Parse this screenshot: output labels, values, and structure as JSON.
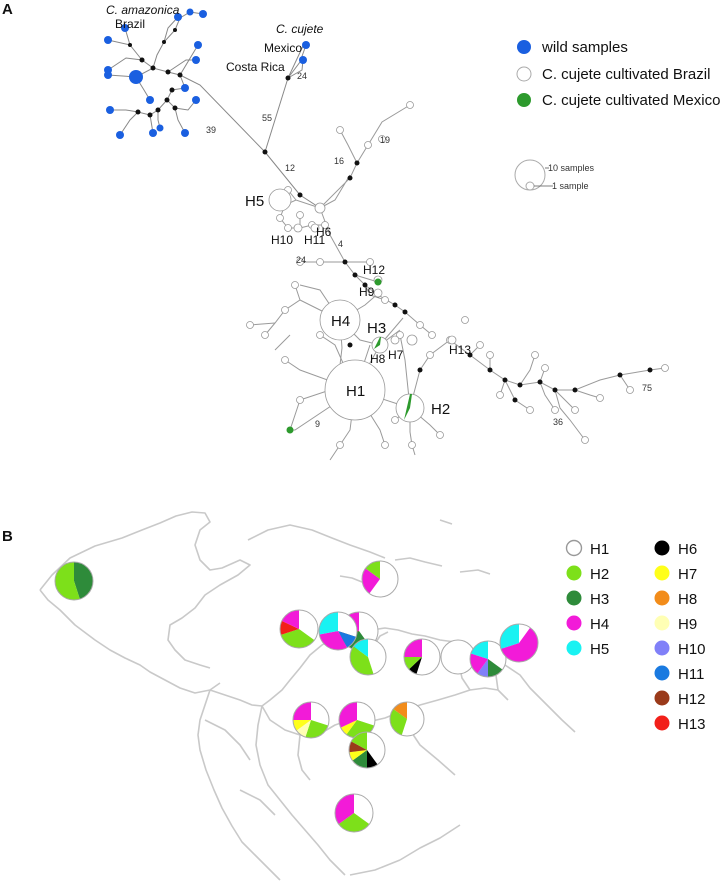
{
  "panels": {
    "a": "A",
    "b": "B"
  },
  "network": {
    "labels": {
      "amazonica_species": "C. amazonica",
      "amazonica_place": "Brazil",
      "cujete_species": "C. cujete",
      "mexico": "Mexico",
      "costa_rica": "Costa Rica"
    },
    "mutation_counts": [
      "39",
      "55",
      "24",
      "12",
      "16",
      "19",
      "4",
      "24",
      "9",
      "36",
      "75"
    ],
    "haplotypes": [
      "H1",
      "H2",
      "H3",
      "H4",
      "H5",
      "H6",
      "H7",
      "H8",
      "H9",
      "H10",
      "H11",
      "H12",
      "H13"
    ],
    "legend": {
      "wild": "wild samples",
      "brazil": "C. cujete cultivated Brazil",
      "mexico": "C. cujete cultivated Mexico",
      "colors": {
        "wild": "#1a5fe0",
        "brazil": "#ffffff",
        "mexico": "#2d9a2d"
      }
    },
    "scale": {
      "big": "10 samples",
      "small": "1 sample"
    }
  },
  "map_legend": [
    {
      "name": "H1",
      "color": "#ffffff"
    },
    {
      "name": "H2",
      "color": "#7de01a"
    },
    {
      "name": "H3",
      "color": "#2e8b3a"
    },
    {
      "name": "H4",
      "color": "#f21bd8"
    },
    {
      "name": "H5",
      "color": "#19f2f2"
    },
    {
      "name": "H6",
      "color": "#000000"
    },
    {
      "name": "H7",
      "color": "#ffff1a"
    },
    {
      "name": "H8",
      "color": "#f28c1a"
    },
    {
      "name": "H9",
      "color": "#ffffb4"
    },
    {
      "name": "H10",
      "color": "#8080f8"
    },
    {
      "name": "H11",
      "color": "#1a7ae0"
    },
    {
      "name": "H12",
      "color": "#9a3a1a"
    },
    {
      "name": "H13",
      "color": "#f2201a"
    }
  ],
  "map_pies": [
    {
      "slices": [
        [
          "H3",
          0.45
        ],
        [
          "H2",
          0.55
        ]
      ]
    },
    {
      "slices": [
        [
          "H1",
          0.6
        ],
        [
          "H4",
          0.25
        ],
        [
          "H2",
          0.15
        ]
      ]
    },
    {
      "slices": [
        [
          "H1",
          0.4
        ],
        [
          "H3",
          0.25
        ],
        [
          "H12",
          0.15
        ],
        [
          "H4",
          0.2
        ]
      ]
    },
    {
      "slices": [
        [
          "H1",
          0.35
        ],
        [
          "H2",
          0.35
        ],
        [
          "H13",
          0.12
        ],
        [
          "H4",
          0.18
        ]
      ]
    },
    {
      "slices": [
        [
          "H1",
          0.3
        ],
        [
          "H11",
          0.12
        ],
        [
          "H4",
          0.3
        ],
        [
          "H5",
          0.28
        ]
      ]
    },
    {
      "slices": [
        [
          "H1",
          0.45
        ],
        [
          "H2",
          0.4
        ],
        [
          "H5",
          0.15
        ]
      ]
    },
    {
      "slices": [
        [
          "H1",
          0.55
        ],
        [
          "H6",
          0.08
        ],
        [
          "H2",
          0.12
        ],
        [
          "H4",
          0.25
        ]
      ]
    },
    {
      "slices": [
        [
          "H1",
          1.0
        ]
      ]
    },
    {
      "slices": [
        [
          "H1",
          0.35
        ],
        [
          "H3",
          0.15
        ],
        [
          "H10",
          0.1
        ],
        [
          "H4",
          0.2
        ],
        [
          "H5",
          0.2
        ]
      ]
    },
    {
      "slices": [
        [
          "H1",
          0.1
        ],
        [
          "H4",
          0.6
        ],
        [
          "H5",
          0.3
        ]
      ]
    },
    {
      "slices": [
        [
          "H1",
          0.3
        ],
        [
          "H2",
          0.25
        ],
        [
          "H9",
          0.1
        ],
        [
          "H7",
          0.1
        ],
        [
          "H4",
          0.25
        ]
      ]
    },
    {
      "slices": [
        [
          "H1",
          0.3
        ],
        [
          "H2",
          0.3
        ],
        [
          "H7",
          0.08
        ],
        [
          "H4",
          0.32
        ]
      ]
    },
    {
      "slices": [
        [
          "H1",
          0.55
        ],
        [
          "H2",
          0.3
        ],
        [
          "H8",
          0.15
        ]
      ]
    },
    {
      "slices": [
        [
          "H1",
          0.4
        ],
        [
          "H6",
          0.1
        ],
        [
          "H3",
          0.15
        ],
        [
          "H7",
          0.08
        ],
        [
          "H12",
          0.1
        ],
        [
          "H2",
          0.17
        ]
      ]
    },
    {
      "slices": [
        [
          "H1",
          0.35
        ],
        [
          "H2",
          0.3
        ],
        [
          "H4",
          0.35
        ]
      ]
    }
  ]
}
